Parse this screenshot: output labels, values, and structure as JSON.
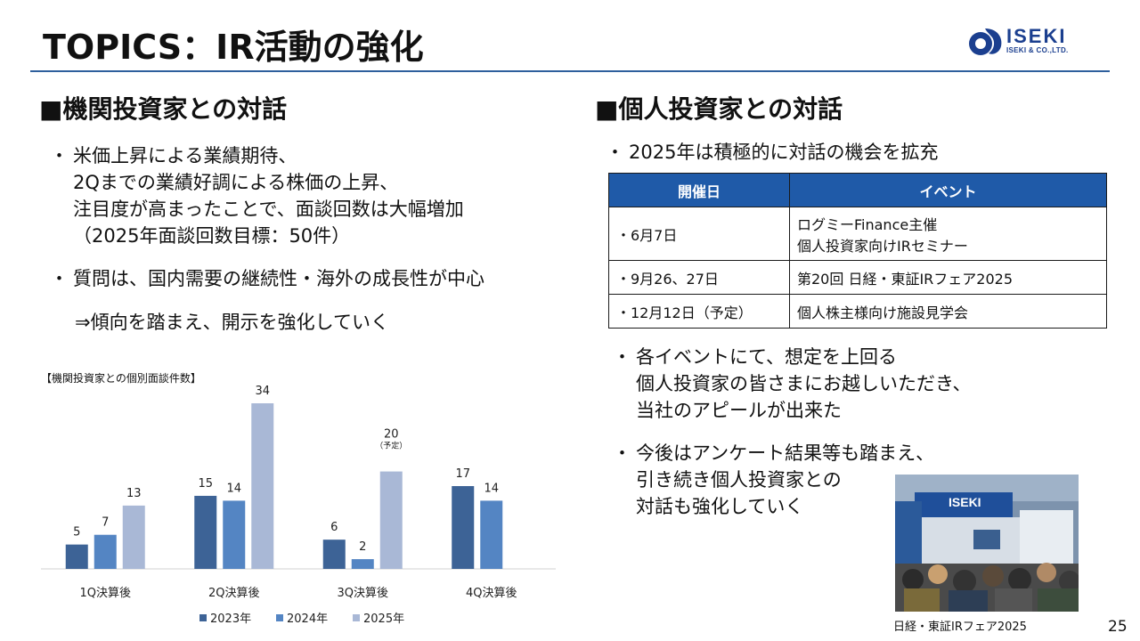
{
  "title": "TOPICS：IR活動の強化",
  "logo": {
    "name": "ISEKI",
    "sub": "ISEKI & CO.,LTD."
  },
  "left": {
    "heading": "■機関投資家との対話",
    "bullet1": {
      "marker": "・",
      "lines": [
        "米価上昇による業績期待、",
        "2Qまでの業績好調による株価の上昇、",
        "注目度が高まったことで、面談回数は大幅増加",
        "（2025年面談回数目標：50件）"
      ]
    },
    "bullet2": {
      "marker": "・",
      "text": "質問は、国内需要の継続性・海外の成長性が中心"
    },
    "arrow_text": "⇒傾向を踏まえ、開示を強化していく"
  },
  "chart_data": {
    "type": "bar",
    "title": "【機関投資家との個別面談件数】",
    "categories": [
      "1Q決算後",
      "2Q決算後",
      "3Q決算後",
      "4Q決算後"
    ],
    "series": [
      {
        "name": "2023年",
        "color": "#3d6396",
        "values": [
          5,
          15,
          6,
          17
        ]
      },
      {
        "name": "2024年",
        "color": "#5485c3",
        "values": [
          7,
          14,
          2,
          14
        ]
      },
      {
        "name": "2025年",
        "color": "#a9b8d6",
        "values": [
          13,
          34,
          20,
          null
        ]
      }
    ],
    "annotations": [
      {
        "category": "3Q決算後",
        "series": "2025年",
        "text": "（予定）"
      }
    ],
    "ylim": [
      0,
      34
    ],
    "legend": "bottom",
    "grid": false
  },
  "right": {
    "heading": "■個人投資家との対話",
    "bullet1": {
      "marker": "・",
      "text": "2025年は積極的に対話の機会を拡充"
    },
    "table": {
      "headers": [
        "開催日",
        "イベント"
      ],
      "rows": [
        {
          "date": "・6月7日",
          "event_line1": "ログミーFinance主催",
          "event_line2": "個人投資家向けIRセミナー"
        },
        {
          "date": "・9月26、27日",
          "event_line1": "第20回 日経・東証IRフェア2025"
        },
        {
          "date": "・12月12日（予定）",
          "event_line1": "個人株主様向け施設見学会"
        }
      ]
    },
    "bullet2": {
      "marker": "・",
      "lines": [
        "各イベントにて、想定を上回る",
        "個人投資家の皆さまにお越しいただき、",
        "当社のアピールが出来た"
      ]
    },
    "bullet3": {
      "marker": "・",
      "lines": [
        "今後はアンケート結果等も踏まえ、",
        "引き続き個人投資家との",
        "対話も強化していく"
      ]
    }
  },
  "photo": {
    "booth_sign": "ISEKI",
    "caption": "日経・東証IRフェア2025"
  },
  "page_number": "25"
}
